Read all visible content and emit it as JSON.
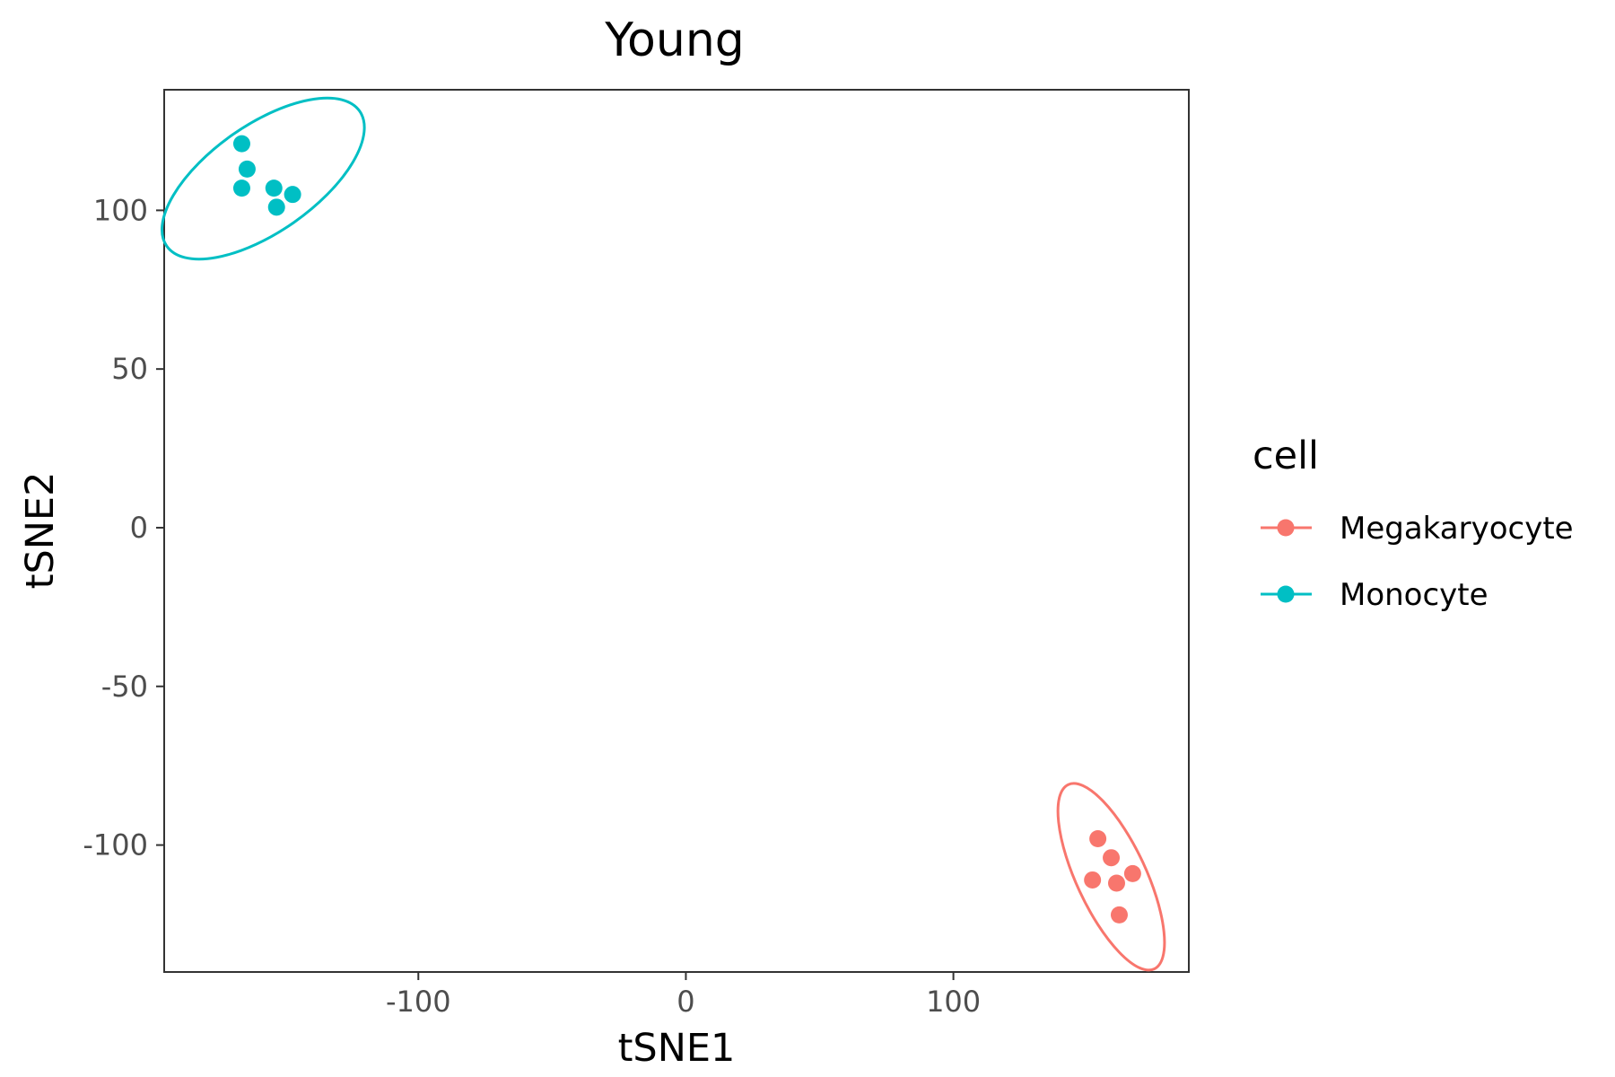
{
  "chart_data": {
    "type": "scatter",
    "title": "Young",
    "xlabel": "tSNE1",
    "ylabel": "tSNE2",
    "xlim": [
      -195,
      188
    ],
    "ylim": [
      -140,
      138
    ],
    "xticks": [
      -100,
      0,
      100
    ],
    "yticks": [
      -100,
      -50,
      0,
      50,
      100
    ],
    "xtick_labels": [
      "-100",
      "0",
      "100"
    ],
    "ytick_labels": [
      "-100",
      "-50",
      "0",
      "50",
      "100"
    ],
    "grid": false,
    "legend": {
      "title": "cell",
      "placement": "right"
    },
    "series": [
      {
        "name": "Megakaryocyte",
        "color": "#F8766D",
        "points": [
          {
            "x": 154,
            "y": -98
          },
          {
            "x": 159,
            "y": -104
          },
          {
            "x": 152,
            "y": -111
          },
          {
            "x": 161,
            "y": -112
          },
          {
            "x": 167,
            "y": -109
          },
          {
            "x": 162,
            "y": -122
          }
        ],
        "ellipse": {
          "cx": 159,
          "cy": -110,
          "rx": 13,
          "ry": 38,
          "angle": 25
        }
      },
      {
        "name": "Monocyte",
        "color": "#00BFC4",
        "points": [
          {
            "x": -166,
            "y": 121
          },
          {
            "x": -164,
            "y": 113
          },
          {
            "x": -166,
            "y": 107
          },
          {
            "x": -154,
            "y": 107
          },
          {
            "x": -147,
            "y": 105
          },
          {
            "x": -153,
            "y": 101
          }
        ],
        "ellipse": {
          "cx": -158,
          "cy": 110,
          "rx": 44,
          "ry": 20,
          "angle": 35
        }
      }
    ]
  }
}
